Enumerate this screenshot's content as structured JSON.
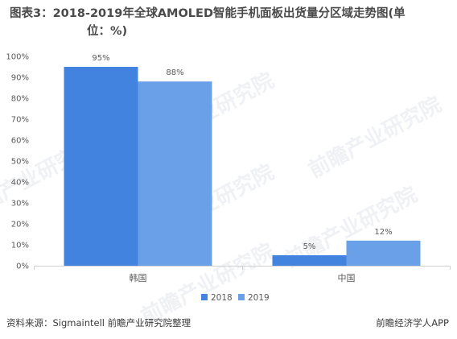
{
  "title_line1": "图表3：2018-2019年全球AMOLED智能手机面板出货量分区域走势图(单",
  "title_line2": "位：%)",
  "source": "资料来源：Sigmaintell 前瞻产业研究院整理",
  "brand": "前瞻经济学人APP",
  "watermark": "前瞻产业研究院",
  "chart_data": {
    "type": "bar",
    "categories": [
      "韩国",
      "中国"
    ],
    "series": [
      {
        "name": "2018",
        "values": [
          95,
          5
        ],
        "labels": [
          "95%",
          "5%"
        ],
        "color": "#4383e0"
      },
      {
        "name": "2019",
        "values": [
          88,
          12
        ],
        "labels": [
          "88%",
          "12%"
        ],
        "color": "#6aa0e8"
      }
    ],
    "ylim": [
      0,
      100
    ],
    "yticks": [
      0,
      10,
      20,
      30,
      40,
      50,
      60,
      70,
      80,
      90,
      100
    ],
    "ytick_labels": [
      "0%",
      "10%",
      "20%",
      "30%",
      "40%",
      "50%",
      "60%",
      "70%",
      "80%",
      "90%",
      "100%"
    ],
    "legend_position": "bottom-center",
    "grid": false
  }
}
